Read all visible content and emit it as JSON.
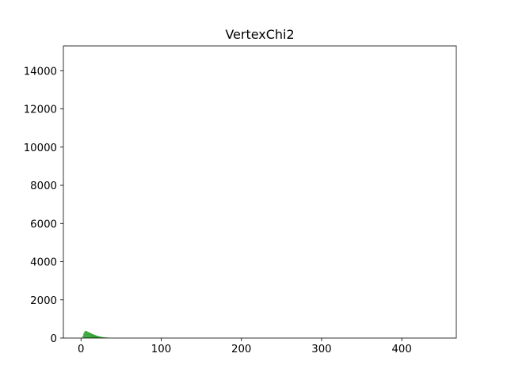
{
  "chart_data": {
    "type": "bar",
    "title": "VertexChi2",
    "xlabel": "",
    "ylabel": "",
    "xlim": [
      -22,
      468
    ],
    "ylim": [
      0,
      15300
    ],
    "xticks": [
      0,
      100,
      200,
      300,
      400
    ],
    "yticks": [
      0,
      2000,
      4000,
      6000,
      8000,
      10000,
      12000,
      14000
    ],
    "grid": false,
    "bar_color": "#2ca02c",
    "bin_width": 1,
    "bins_start": [
      2,
      3,
      4,
      5,
      6,
      7,
      8,
      9,
      10,
      11,
      12,
      13,
      14,
      15,
      16,
      17,
      18,
      19,
      20,
      21,
      22,
      23,
      24,
      25,
      26,
      27,
      28,
      29,
      30,
      31,
      32,
      33,
      34,
      35,
      40,
      45
    ],
    "counts": [
      120,
      250,
      330,
      380,
      370,
      350,
      330,
      310,
      290,
      270,
      250,
      230,
      210,
      190,
      170,
      155,
      140,
      125,
      110,
      100,
      90,
      80,
      70,
      62,
      55,
      48,
      42,
      37,
      32,
      28,
      24,
      20,
      17,
      15,
      8,
      5
    ]
  }
}
